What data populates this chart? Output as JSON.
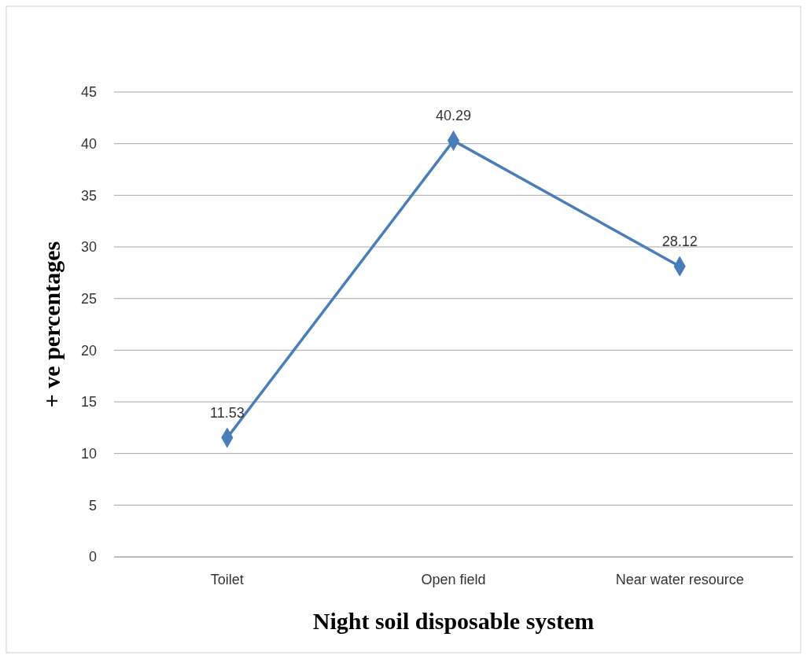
{
  "chart_data": {
    "type": "line",
    "xlabel": "Night soil disposable system",
    "ylabel": "+ ve percentages",
    "categories": [
      "Toilet",
      "Open field",
      "Near water resource"
    ],
    "series": [
      {
        "color": "#4a7ebb",
        "values": [
          11.53,
          40.29,
          28.12
        ]
      }
    ],
    "ylim": [
      0,
      45
    ],
    "yticks": [
      0,
      5,
      10,
      15,
      20,
      25,
      30,
      35,
      40,
      45
    ],
    "grid": "y",
    "marker": "diamond",
    "data_labels": true
  }
}
